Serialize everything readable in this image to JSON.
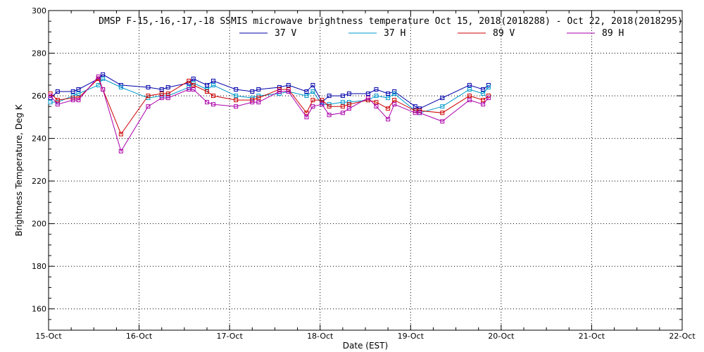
{
  "chart_data": {
    "type": "line",
    "title": "DMSP F-15,-16,-17,-18 SSMIS microwave brightness temperature Oct 15, 2018(2018288) - Oct 22, 2018(2018295)",
    "xlabel": "Date (EST)",
    "ylabel": "Brightness Temperature, Deg K",
    "x_tick_labels": [
      "15-Oct",
      "16-Oct",
      "17-Oct",
      "18-Oct",
      "19-Oct",
      "20-Oct",
      "21-Oct",
      "22-Oct"
    ],
    "y_ticks": [
      160,
      180,
      200,
      220,
      240,
      260,
      280,
      300
    ],
    "xlim": [
      0,
      7
    ],
    "ylim": [
      150,
      300
    ],
    "grid": true,
    "legend_position": "top",
    "series": [
      {
        "name": "37 V",
        "color": "#0000aa",
        "points": [
          [
            0.02,
            259
          ],
          [
            0.1,
            262
          ],
          [
            0.27,
            262
          ],
          [
            0.33,
            263
          ],
          [
            0.55,
            268
          ],
          [
            0.6,
            270
          ],
          [
            0.8,
            265
          ],
          [
            1.1,
            264
          ],
          [
            1.25,
            263
          ],
          [
            1.32,
            264
          ],
          [
            1.55,
            266
          ],
          [
            1.6,
            268
          ],
          [
            1.75,
            265
          ],
          [
            1.82,
            267
          ],
          [
            2.07,
            263
          ],
          [
            2.25,
            262
          ],
          [
            2.32,
            263
          ],
          [
            2.55,
            264
          ],
          [
            2.65,
            265
          ],
          [
            2.85,
            262
          ],
          [
            2.92,
            265
          ],
          [
            3.02,
            257
          ],
          [
            3.1,
            260
          ],
          [
            3.25,
            260
          ],
          [
            3.32,
            261
          ],
          [
            3.53,
            261
          ],
          [
            3.62,
            263
          ],
          [
            3.75,
            261
          ],
          [
            3.82,
            262
          ],
          [
            4.05,
            255
          ],
          [
            4.1,
            254
          ],
          [
            4.35,
            259
          ],
          [
            4.65,
            265
          ],
          [
            4.8,
            263
          ],
          [
            4.86,
            265
          ]
        ]
      },
      {
        "name": "37 H",
        "color": "#0099cc",
        "points": [
          [
            0.02,
            257
          ],
          [
            0.1,
            257
          ],
          [
            0.27,
            260
          ],
          [
            0.33,
            261
          ],
          [
            0.55,
            265
          ],
          [
            0.6,
            268
          ],
          [
            0.8,
            264
          ],
          [
            1.1,
            259
          ],
          [
            1.25,
            260
          ],
          [
            1.32,
            260
          ],
          [
            1.55,
            264
          ],
          [
            1.6,
            266
          ],
          [
            1.75,
            263
          ],
          [
            1.82,
            265
          ],
          [
            2.07,
            260
          ],
          [
            2.25,
            259
          ],
          [
            2.32,
            260
          ],
          [
            2.55,
            261
          ],
          [
            2.65,
            262
          ],
          [
            2.85,
            260
          ],
          [
            2.92,
            262
          ],
          [
            3.02,
            256
          ],
          [
            3.1,
            256
          ],
          [
            3.25,
            257
          ],
          [
            3.32,
            257
          ],
          [
            3.53,
            258
          ],
          [
            3.62,
            260
          ],
          [
            3.75,
            259
          ],
          [
            3.82,
            261
          ],
          [
            4.05,
            253
          ],
          [
            4.1,
            252
          ],
          [
            4.35,
            255
          ],
          [
            4.65,
            263
          ],
          [
            4.8,
            261
          ],
          [
            4.86,
            264
          ]
        ]
      },
      {
        "name": "89 V",
        "color": "#cc0000",
        "points": [
          [
            0.02,
            261
          ],
          [
            0.1,
            258
          ],
          [
            0.27,
            259
          ],
          [
            0.33,
            259
          ],
          [
            0.55,
            268
          ],
          [
            0.6,
            263
          ],
          [
            0.8,
            242
          ],
          [
            1.1,
            260
          ],
          [
            1.25,
            261
          ],
          [
            1.32,
            261
          ],
          [
            1.55,
            267
          ],
          [
            1.6,
            265
          ],
          [
            1.75,
            262
          ],
          [
            1.82,
            260
          ],
          [
            2.07,
            258
          ],
          [
            2.25,
            258
          ],
          [
            2.32,
            259
          ],
          [
            2.55,
            263
          ],
          [
            2.65,
            263
          ],
          [
            2.85,
            252
          ],
          [
            2.92,
            258
          ],
          [
            3.02,
            258
          ],
          [
            3.1,
            255
          ],
          [
            3.25,
            255
          ],
          [
            3.32,
            256
          ],
          [
            3.53,
            258
          ],
          [
            3.62,
            257
          ],
          [
            3.75,
            254
          ],
          [
            3.82,
            258
          ],
          [
            4.05,
            253
          ],
          [
            4.1,
            253
          ],
          [
            4.35,
            252
          ],
          [
            4.65,
            260
          ],
          [
            4.8,
            258
          ],
          [
            4.86,
            260
          ]
        ]
      },
      {
        "name": "89 H",
        "color": "#aa00aa",
        "points": [
          [
            0.02,
            260
          ],
          [
            0.1,
            256
          ],
          [
            0.27,
            258
          ],
          [
            0.33,
            258
          ],
          [
            0.55,
            269
          ],
          [
            0.6,
            263
          ],
          [
            0.8,
            234
          ],
          [
            1.1,
            255
          ],
          [
            1.25,
            259
          ],
          [
            1.32,
            259
          ],
          [
            1.55,
            263
          ],
          [
            1.6,
            263
          ],
          [
            1.75,
            257
          ],
          [
            1.82,
            256
          ],
          [
            2.07,
            255
          ],
          [
            2.25,
            257
          ],
          [
            2.32,
            257
          ],
          [
            2.55,
            262
          ],
          [
            2.65,
            262
          ],
          [
            2.85,
            250
          ],
          [
            2.92,
            255
          ],
          [
            3.02,
            256
          ],
          [
            3.1,
            251
          ],
          [
            3.25,
            252
          ],
          [
            3.32,
            254
          ],
          [
            3.53,
            259
          ],
          [
            3.62,
            255
          ],
          [
            3.75,
            249
          ],
          [
            3.82,
            256
          ],
          [
            4.05,
            252
          ],
          [
            4.1,
            252
          ],
          [
            4.35,
            248
          ],
          [
            4.65,
            258
          ],
          [
            4.8,
            256
          ],
          [
            4.86,
            259
          ]
        ]
      }
    ]
  }
}
